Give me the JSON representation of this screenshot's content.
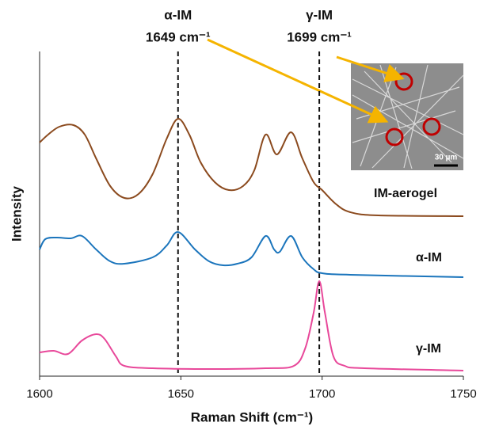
{
  "chart_data": {
    "type": "line",
    "x_label": "Raman Shift (cm⁻¹)",
    "y_label": "Intensity",
    "xlim": [
      1600,
      1750
    ],
    "xticks": [
      1600,
      1650,
      1700,
      1750
    ],
    "ylim": [
      0,
      100
    ],
    "annotations": [
      {
        "text": "α-IM",
        "subtext": "1649 cm⁻¹",
        "x": 1649
      },
      {
        "text": "γ-IM",
        "subtext": "1699 cm⁻¹",
        "x": 1699
      }
    ],
    "inset_scale_label": "30 µm",
    "series": [
      {
        "name": "IM-aerogel",
        "color": "#8b4a1e",
        "x": [
          1600,
          1603,
          1607,
          1612,
          1616,
          1620,
          1625,
          1630,
          1635,
          1640,
          1645,
          1649,
          1653,
          1657,
          1662,
          1667,
          1672,
          1676,
          1680,
          1684,
          1689,
          1693,
          1697,
          1700,
          1705,
          1710,
          1720,
          1750
        ],
        "values": [
          73.75,
          76.25,
          78.75,
          79.25,
          76.25,
          68.75,
          60,
          56.25,
          57.5,
          63.75,
          75,
          81.25,
          76.25,
          67.5,
          61.25,
          58.75,
          60,
          65,
          76.25,
          70,
          77,
          68.75,
          61.25,
          58.75,
          54.25,
          51.75,
          50.75,
          50.5
        ]
      },
      {
        "name": "α-IM",
        "color": "#1b75bc",
        "x": [
          1600,
          1602,
          1606,
          1611,
          1615,
          1620,
          1625,
          1630,
          1640,
          1645,
          1649,
          1655,
          1660,
          1665,
          1670,
          1675,
          1680,
          1683,
          1685,
          1689,
          1693,
          1697,
          1700,
          1710,
          1750
        ],
        "values": [
          40,
          43.25,
          43.75,
          43.5,
          44.25,
          40,
          36.25,
          35.5,
          37.5,
          41.25,
          45.5,
          40,
          36.25,
          35,
          35.5,
          37.5,
          44.25,
          40,
          39.25,
          44.25,
          37.5,
          33.75,
          32.5,
          32,
          31.25
        ]
      },
      {
        "name": "γ-IM",
        "color": "#e8489a",
        "x": [
          1600,
          1605,
          1610,
          1615,
          1620,
          1623,
          1627,
          1630,
          1640,
          1660,
          1680,
          1690,
          1694,
          1697,
          1699,
          1701,
          1704,
          1708,
          1715,
          1750
        ],
        "values": [
          7.5,
          8,
          7,
          11.25,
          13.25,
          11.75,
          6.25,
          3.25,
          2.5,
          2.25,
          2.5,
          3.25,
          8.75,
          20,
          30,
          20,
          6.25,
          3.25,
          2.5,
          1.75
        ]
      }
    ]
  }
}
